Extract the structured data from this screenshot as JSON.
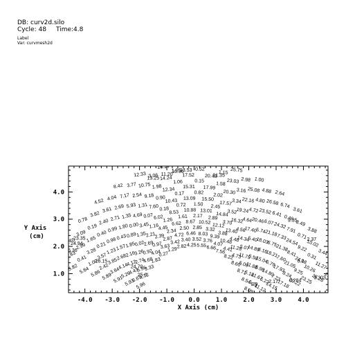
{
  "header": {
    "db_line": "DB: curv2d.silo",
    "cycle_label": "Cycle:",
    "cycle_value": "48",
    "time_label": "Time:",
    "time_value": "4.8",
    "plot_type": "Label",
    "var_line": "Var: curvmesh2d"
  },
  "chart_data": {
    "type": "scatter",
    "title": "",
    "xlabel": "X Axis  (cm)",
    "ylabel_lines": [
      "Y Axis",
      "(cm)"
    ],
    "xlim": [
      -4.6,
      4.9
    ],
    "ylim": [
      0.3,
      4.95
    ],
    "x_ticks": [
      -4.0,
      -3.0,
      -2.0,
      -1.0,
      0.0,
      1.0,
      2.0,
      3.0,
      4.0
    ],
    "x_tick_labels": [
      "-4.0",
      "-3.0",
      "-2.0",
      "-1.0",
      "0.0",
      "1.0",
      "2.0",
      "3.0",
      "4.0"
    ],
    "y_ticks": [
      1.0,
      2.0,
      3.0,
      4.0
    ],
    "y_tick_labels": [
      "1.0",
      "2.0",
      "3.0",
      "4.0"
    ],
    "grid": false,
    "mesh": {
      "kind": "curvilinear annulus sector",
      "inner_radius": 2.0,
      "outer_radius": 5.0,
      "start_angle_deg": 10,
      "end_angle_deg": 165,
      "radial_nodes": 8,
      "angular_nodes": 16
    },
    "visible_labels": [
      {
        "text": "13.53",
        "x": -0.3,
        "y": 4.75
      },
      {
        "text": "16.36",
        "x": -0.6,
        "y": 4.7
      },
      {
        "text": "11.20",
        "x": -1.0,
        "y": 4.6
      },
      {
        "text": "13.25",
        "x": -1.5,
        "y": 4.45
      },
      {
        "text": "23.35",
        "x": -4.2,
        "y": 2.25
      },
      {
        "text": "24.94",
        "x": -4.3,
        "y": 2.05
      },
      {
        "text": "25.36",
        "x": -4.5,
        "y": 1.8
      },
      {
        "text": "26.15",
        "x": -3.4,
        "y": 1.4
      },
      {
        "text": "24.70",
        "x": -2.1,
        "y": 1.2
      },
      {
        "text": "25.0",
        "x": -1.9,
        "y": 0.9
      },
      {
        "text": "21.35",
        "x": 0.9,
        "y": 4.55
      },
      {
        "text": "9.35",
        "x": 3.6,
        "y": 2.9
      },
      {
        "text": "2.37",
        "x": 4.3,
        "y": 2.2
      },
      {
        "text": "6.0",
        "x": 3.9,
        "y": 1.4
      },
      {
        "text": "0.284",
        "x": 3.7,
        "y": 0.7
      },
      {
        "text": "0.303",
        "x": 4.6,
        "y": 0.8
      },
      {
        "text": "2.17",
        "x": 2.9,
        "y": 0.65
      },
      {
        "text": "0.0",
        "x": 2.2,
        "y": 0.55
      }
    ]
  }
}
